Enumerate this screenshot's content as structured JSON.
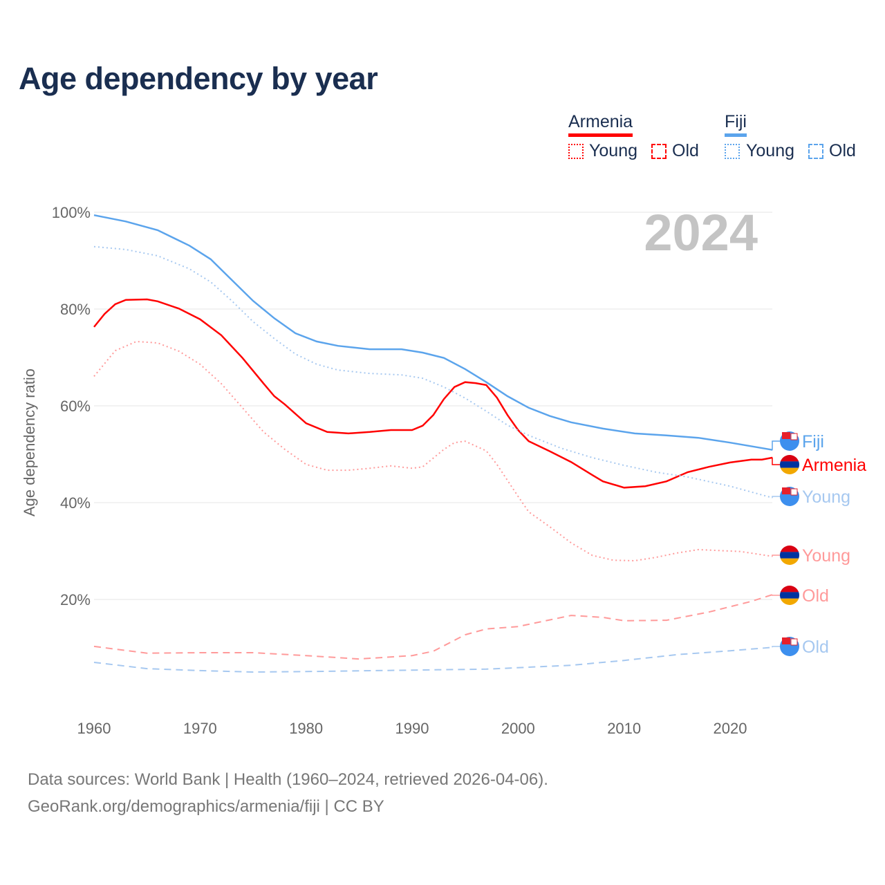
{
  "title": "Age dependency by year",
  "legend": {
    "groups": [
      {
        "name": "Armenia",
        "color": "#ff0000",
        "items": [
          "Young",
          "Old"
        ]
      },
      {
        "name": "Fiji",
        "color": "#5ba4ec",
        "items": [
          "Young",
          "Old"
        ]
      }
    ]
  },
  "source": {
    "line1": "Data sources: World Bank | Health (1960–2024, retrieved 2026-04-06).",
    "line2": "GeoRank.org/demographics/armenia/fiji | CC BY"
  },
  "chart_data": {
    "type": "line",
    "title": "Age dependency by year",
    "xlabel": "",
    "ylabel": "Age dependency ratio",
    "xlim": [
      1960,
      2024
    ],
    "ylim": [
      0,
      100
    ],
    "year_label": "2024",
    "xticks": [
      1960,
      1970,
      1980,
      1990,
      2000,
      2010,
      2020
    ],
    "xtick_labels": [
      "1960",
      "1970",
      "1980",
      "1990",
      "2000",
      "2010",
      "2020"
    ],
    "yticks": [
      20,
      40,
      60,
      80,
      100
    ],
    "ytick_labels": [
      "20%",
      "40%",
      "60%",
      "80%",
      "100%"
    ],
    "series": [
      {
        "name": "Fiji",
        "end_label": "Fiji",
        "country": "Fiji",
        "style": "solid",
        "color": "#5ba4ec",
        "label_color": "#5ba4ec",
        "x": [
          1960,
          1963,
          1966,
          1969,
          1971,
          1973,
          1975,
          1977,
          1979,
          1981,
          1983,
          1986,
          1989,
          1991,
          1993,
          1995,
          1997,
          1999,
          2001,
          2003,
          2005,
          2008,
          2011,
          2014,
          2017,
          2020,
          2024
        ],
        "y": [
          99.4,
          98.1,
          96.3,
          93.1,
          90.3,
          86,
          81.7,
          78.1,
          75,
          73.3,
          72.4,
          71.7,
          71.7,
          71,
          69.9,
          67.6,
          64.9,
          62,
          59.6,
          57.9,
          56.6,
          55.3,
          54.3,
          53.9,
          53.4,
          52.4,
          50.9
        ]
      },
      {
        "name": "Armenia",
        "end_label": "Armenia",
        "country": "Armenia",
        "style": "solid",
        "color": "#ff0000",
        "label_color": "#ff0000",
        "x": [
          1960,
          1961,
          1962,
          1963,
          1965,
          1966,
          1968,
          1970,
          1972,
          1974,
          1976,
          1977,
          1978,
          1980,
          1982,
          1984,
          1986,
          1988,
          1990,
          1991,
          1992,
          1993,
          1994,
          1995,
          1996,
          1997,
          1998,
          1999,
          2000,
          2001,
          2003,
          2005,
          2007,
          2008,
          2010,
          2012,
          2014,
          2016,
          2018,
          2020,
          2022,
          2023,
          2024
        ],
        "y": [
          76.3,
          79,
          81,
          81.9,
          82,
          81.6,
          80.1,
          77.9,
          74.6,
          69.9,
          64.6,
          62,
          60.3,
          56.4,
          54.6,
          54.3,
          54.6,
          55,
          55,
          55.9,
          58.1,
          61.4,
          63.9,
          64.9,
          64.7,
          64.3,
          61.7,
          58.1,
          55,
          52.7,
          50.6,
          48.4,
          45.7,
          44.4,
          43.1,
          43.4,
          44.4,
          46.3,
          47.4,
          48.3,
          48.9,
          48.9,
          49.3
        ]
      },
      {
        "name": "Fiji Young",
        "end_label": "Young",
        "country": "Fiji",
        "style": "dotted",
        "color": "#a6c8f0",
        "label_color": "#a6c8f0",
        "x": [
          1960,
          1963,
          1966,
          1969,
          1971,
          1973,
          1975,
          1977,
          1979,
          1981,
          1983,
          1986,
          1989,
          1991,
          1993,
          1995,
          1997,
          1999,
          2001,
          2004,
          2007,
          2010,
          2013,
          2016,
          2020,
          2024
        ],
        "y": [
          92.9,
          92.3,
          91,
          88.3,
          85.6,
          81.7,
          77.4,
          73.9,
          70.7,
          68.6,
          67.4,
          66.7,
          66.4,
          65.7,
          63.9,
          61.6,
          58.9,
          56,
          53.9,
          51.3,
          49.3,
          47.7,
          46.3,
          45.3,
          43.4,
          41
        ]
      },
      {
        "name": "Armenia Young",
        "end_label": "Young",
        "country": "Armenia",
        "style": "dotted",
        "color": "#ff9a9a",
        "label_color": "#ff9a9a",
        "x": [
          1960,
          1962,
          1964,
          1966,
          1968,
          1970,
          1972,
          1974,
          1976,
          1978,
          1980,
          1982,
          1984,
          1986,
          1988,
          1990,
          1991,
          1993,
          1994,
          1995,
          1997,
          1998,
          2000,
          2001,
          2003,
          2005,
          2007,
          2009,
          2011,
          2013,
          2015,
          2017,
          2019,
          2021,
          2024
        ],
        "y": [
          66.1,
          71.4,
          73.3,
          73,
          71.3,
          68.6,
          64.6,
          59.6,
          54.6,
          51,
          47.9,
          46.7,
          46.7,
          47.1,
          47.6,
          47.1,
          47.4,
          51,
          52.4,
          52.7,
          50.7,
          47.9,
          41.3,
          38.1,
          35,
          31.7,
          29.1,
          28.1,
          28,
          28.7,
          29.6,
          30.3,
          30.1,
          29.9,
          28.9
        ]
      },
      {
        "name": "Armenia Old",
        "end_label": "Old",
        "country": "Armenia",
        "style": "dashed",
        "color": "#ff9a9a",
        "label_color": "#ff9a9a",
        "x": [
          1960,
          1965,
          1970,
          1975,
          1980,
          1985,
          1990,
          1992,
          1995,
          1997,
          2000,
          2005,
          2008,
          2010,
          2014,
          2018,
          2022,
          2024
        ],
        "y": [
          10.3,
          8.9,
          9,
          9,
          8.4,
          7.7,
          8.4,
          9.3,
          12.7,
          13.9,
          14.4,
          16.7,
          16.3,
          15.6,
          15.7,
          17.4,
          19.6,
          21
        ]
      },
      {
        "name": "Fiji Old",
        "end_label": "Old",
        "country": "Fiji",
        "style": "dashed",
        "color": "#a6c8f0",
        "label_color": "#a6c8f0",
        "x": [
          1960,
          1965,
          1970,
          1975,
          1980,
          1990,
          1997,
          2005,
          2010,
          2015,
          2020,
          2024
        ],
        "y": [
          7,
          5.7,
          5.3,
          5,
          5.1,
          5.4,
          5.6,
          6.4,
          7.4,
          8.6,
          9.4,
          10.1
        ]
      }
    ]
  }
}
